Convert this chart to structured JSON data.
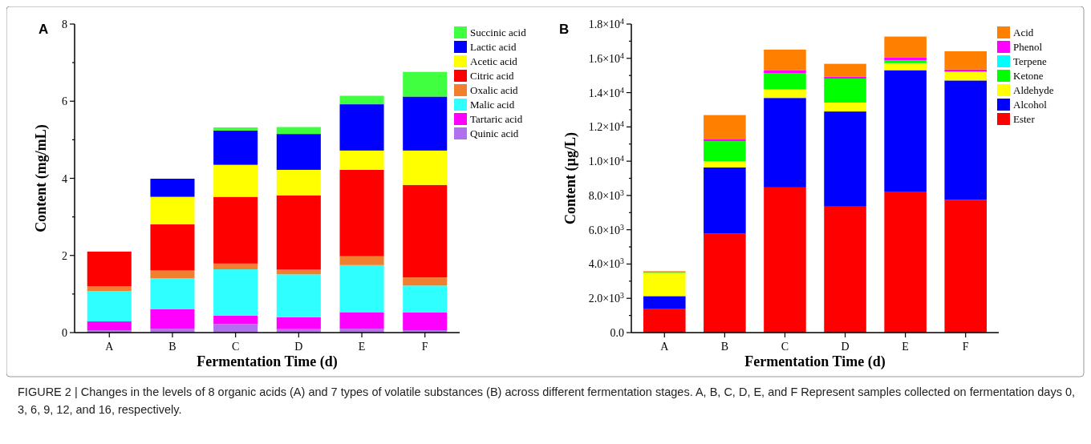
{
  "chart_data": [
    {
      "type": "bar",
      "title": "A",
      "xlabel": "Fermentation Time (d)",
      "ylabel": "Content (mg/mL)",
      "stacked": true,
      "legend": "top right",
      "categories": [
        "A",
        "B",
        "C",
        "D",
        "E",
        "F"
      ],
      "ylim": [
        0,
        8
      ],
      "yticks": [
        0,
        {
          "value": 1,
          "label": null
        },
        2,
        {
          "value": 3,
          "label": null
        },
        4,
        {
          "value": 5,
          "label": null
        },
        6,
        {
          "value": 7,
          "label": null
        },
        8
      ],
      "series": [
        {
          "name": "Quinic acid",
          "color": "#b070f0",
          "values": [
            0.06,
            0.1,
            0.22,
            0.09,
            0.1,
            0.06
          ]
        },
        {
          "name": "Tartaric acid",
          "color": "#ff00ff",
          "values": [
            0.23,
            0.51,
            0.22,
            0.31,
            0.43,
            0.46
          ]
        },
        {
          "name": "Malic acid",
          "color": "#30ffff",
          "values": [
            0.79,
            0.8,
            1.2,
            1.11,
            1.22,
            0.7
          ]
        },
        {
          "name": "Oxalic acid",
          "color": "#f08030",
          "values": [
            0.12,
            0.2,
            0.15,
            0.12,
            0.23,
            0.21
          ]
        },
        {
          "name": "Citric acid",
          "color": "#ff0000",
          "values": [
            0.9,
            1.2,
            1.73,
            1.93,
            2.24,
            2.4
          ]
        },
        {
          "name": "Acetic acid",
          "color": "#ffff00",
          "values": [
            0,
            0.71,
            0.83,
            0.66,
            0.5,
            0.89
          ]
        },
        {
          "name": "Lactic acid",
          "color": "#0000ff",
          "values": [
            0,
            0.47,
            0.89,
            0.93,
            1.2,
            1.4
          ]
        },
        {
          "name": "Succinic acid",
          "color": "#40ff40",
          "values": [
            0,
            0,
            0.08,
            0.18,
            0.22,
            0.64
          ]
        }
      ],
      "annotations": [
        "FIGURE 2 | Changes in the levels of 8 organic acids (A) and 7 types of volatile substances (B) across different fermentation stages. A, B, C, D, E, and F Represent samples collected on fermentation days 0, 3, 6, 9, 12, and 16, respectively."
      ]
    },
    {
      "type": "bar",
      "title": "B",
      "xlabel": "Fermentation Time (d)",
      "ylabel": "Content (µg/L)",
      "stacked": true,
      "legend": "top right",
      "categories": [
        "A",
        "B",
        "C",
        "D",
        "E",
        "F"
      ],
      "ylim": [
        0,
        18000
      ],
      "yticks": [
        {
          "value": 0,
          "label": "0.0"
        },
        {
          "value": 1000,
          "label": null
        },
        {
          "value": 2000,
          "label": "2.0×10$^{3}$"
        },
        {
          "value": 3000,
          "label": null
        },
        {
          "value": 4000,
          "label": "4.0×10$^{3}$"
        },
        {
          "value": 5000,
          "label": null
        },
        {
          "value": 6000,
          "label": "6.0×10$^{3}$"
        },
        {
          "value": 7000,
          "label": null
        },
        {
          "value": 8000,
          "label": "8.0×10$^{3}$"
        },
        {
          "value": 9000,
          "label": null
        },
        {
          "value": 10000,
          "label": "1.0×10$^{4}$"
        },
        {
          "value": 11000,
          "label": null
        },
        {
          "value": 12000,
          "label": "1.2×10$^{4}$"
        },
        {
          "value": 13000,
          "label": null
        },
        {
          "value": 14000,
          "label": "1.4×10$^{4}$"
        },
        {
          "value": 15000,
          "label": null
        },
        {
          "value": 16000,
          "label": "1.6×10$^{4}$"
        },
        {
          "value": 17000,
          "label": null
        },
        {
          "value": 18000,
          "label": "1.8×10$^{4}$"
        }
      ],
      "series": [
        {
          "name": "Ester",
          "color": "#ff0000",
          "values": [
            1400,
            5770,
            8470,
            7350,
            8230,
            7740
          ]
        },
        {
          "name": "Alcohol",
          "color": "#0000ff",
          "values": [
            730,
            3870,
            5220,
            5550,
            7080,
            6970
          ]
        },
        {
          "name": "Aldehyde",
          "color": "#ffff00",
          "values": [
            1360,
            360,
            500,
            520,
            410,
            510
          ]
        },
        {
          "name": "Ketone",
          "color": "#00ff00",
          "values": [
            60,
            1170,
            930,
            1400,
            160,
            null
          ]
        },
        {
          "name": "Terpene",
          "color": "#00ffff",
          "values": [
            0,
            0,
            0,
            0,
            0,
            0
          ]
        },
        {
          "name": "Phenol",
          "color": "#ff00ff",
          "values": [
            0,
            130,
            190,
            110,
            180,
            130
          ]
        },
        {
          "name": "Acid",
          "color": "#ff8000",
          "values": [
            30,
            1390,
            1200,
            750,
            1210,
            1060
          ]
        }
      ]
    }
  ]
}
